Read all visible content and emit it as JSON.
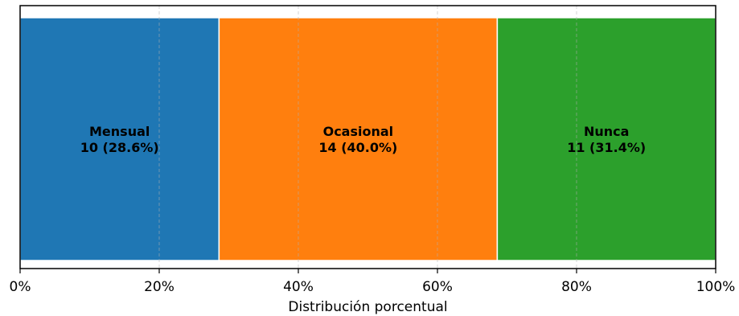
{
  "chart_data": {
    "type": "bar",
    "orientation": "horizontal-stacked-100",
    "xlabel": "Distribución porcentual",
    "xlim": [
      0,
      100
    ],
    "x_ticks": [
      "0%",
      "20%",
      "40%",
      "60%",
      "80%",
      "100%"
    ],
    "grid": true,
    "segments": [
      {
        "name": "Mensual",
        "count": 10,
        "percent": 28.6,
        "display": "10 (28.6%)",
        "color": "#1f77b4"
      },
      {
        "name": "Ocasional",
        "count": 14,
        "percent": 40.0,
        "display": "14 (40.0%)",
        "color": "#ff7f0e"
      },
      {
        "name": "Nunca",
        "count": 11,
        "percent": 31.4,
        "display": "11 (31.4%)",
        "color": "#2ca02c"
      }
    ]
  }
}
